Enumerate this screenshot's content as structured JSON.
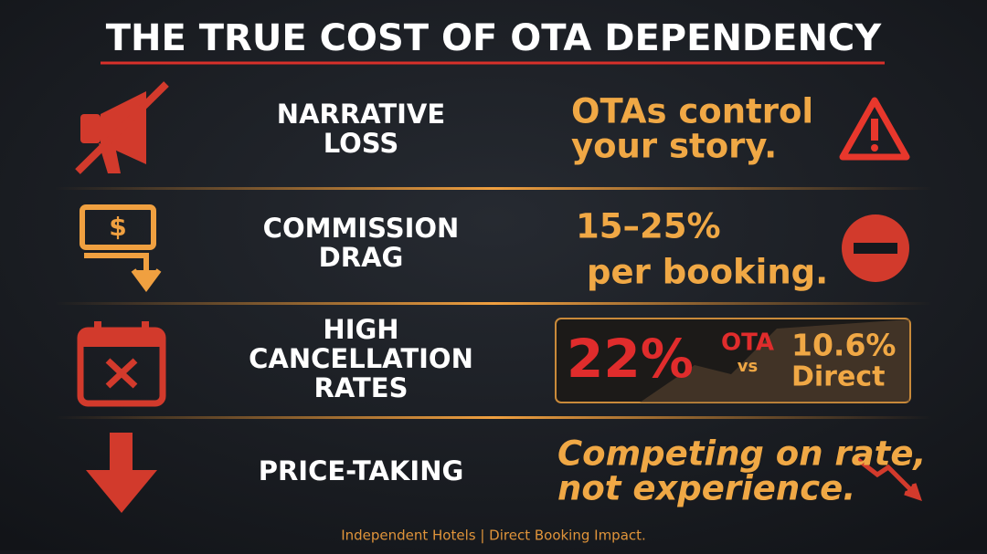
{
  "title": "THE TRUE COST OF OTA DEPENDENCY",
  "rows": [
    {
      "label": [
        "NARRATIVE",
        "LOSS"
      ],
      "detail": [
        "OTAs control",
        "your story."
      ]
    },
    {
      "label": [
        "COMMISSION",
        "DRAG"
      ],
      "detail": [
        "15–25%",
        "per booking."
      ]
    },
    {
      "label": [
        "HIGH",
        "CANCELLATION",
        "RATES"
      ],
      "comparison": {
        "ota_value": "22%",
        "ota_label": "OTA",
        "vs": "vs",
        "direct_value": "10.6%",
        "direct_label": "Direct"
      }
    },
    {
      "label": [
        "PRICE-TAKING"
      ],
      "detail": [
        "Competing on rate,",
        "not experience."
      ]
    }
  ],
  "footer": "Independent Hotels | Direct Booking Impact."
}
